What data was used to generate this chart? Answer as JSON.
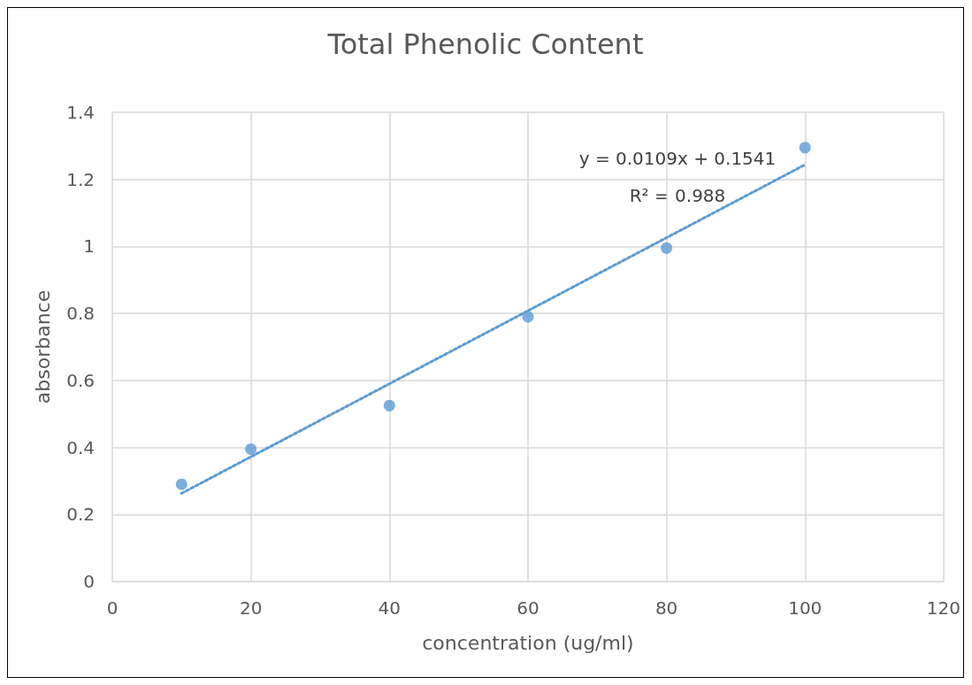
{
  "chart_data": {
    "type": "scatter",
    "title": "Total Phenolic Content",
    "xlabel": "concentration (ug/ml)",
    "ylabel": "absorbance",
    "annotations": [
      "y = 0.0109x + 0.1541",
      "R² = 0.988"
    ],
    "series": [
      {
        "x": [
          10,
          20,
          40,
          60,
          80,
          100
        ],
        "values": [
          0.29,
          0.395,
          0.525,
          0.79,
          0.995,
          1.295
        ],
        "color": "#5b9bd5",
        "marker": "circle"
      },
      {
        "type": "line",
        "x": [
          10,
          100
        ],
        "values": [
          0.263,
          1.244
        ],
        "color": "#5b9bd5",
        "line_style": "dotted",
        "marker": "none"
      }
    ],
    "xlim": [
      0,
      120
    ],
    "xticks": [
      0,
      20,
      40,
      60,
      80,
      100,
      120
    ],
    "ylim": [
      0,
      1.4
    ],
    "yticks": [
      0,
      0.2,
      0.4,
      0.6,
      0.8,
      1,
      1.2,
      1.4
    ],
    "grid": true
  }
}
